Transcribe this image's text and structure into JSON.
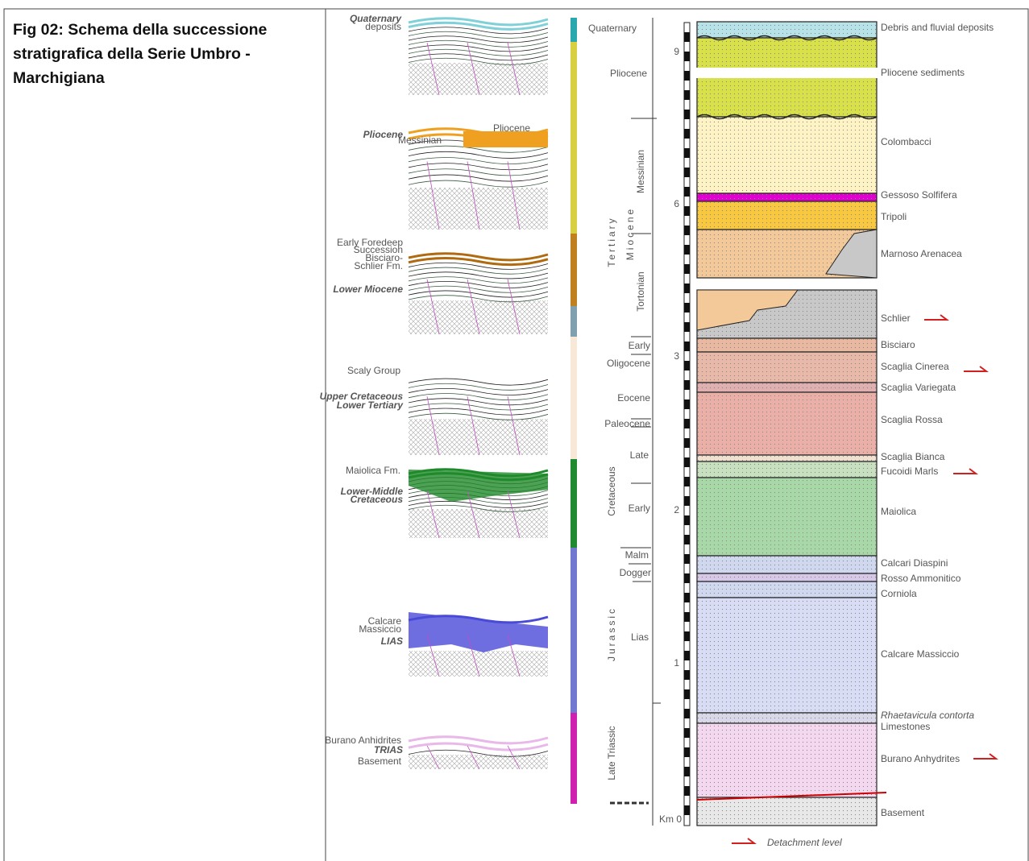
{
  "caption": "Fig 02: Schema della successione stratigrafica della Serie Umbro - Marchigiana",
  "sketches": [
    "Quaternary",
    "deposits",
    "Pliocene",
    "Pliocene",
    "Messinian",
    "Early Foredeep",
    "Succession",
    "Bisciaro-",
    "Schlier Fm.",
    "Lower Miocene",
    "Scaly Group",
    "Upper Cretaceous",
    "Lower Tertiary",
    "Maiolica Fm.",
    "Lower-Middle",
    "Cretaceous",
    "Calcare",
    "Massiccio",
    "LIAS",
    "Burano Anhidrites",
    "TRIAS",
    "Basement"
  ],
  "chronology": [
    "Quaternary",
    "Pliocene",
    "Tertiary",
    "Miocene",
    "Messinian",
    "Tortonian",
    "Early",
    "Oligocene",
    "Eocene",
    "Paleocene",
    "Cretaceous",
    "Late",
    "Early",
    "Malm",
    "Dogger",
    "Jurassic",
    "Lias",
    "Late Triassic"
  ],
  "depth_scale": [
    "9",
    "6",
    "3",
    "2",
    "1",
    "Km 0"
  ],
  "units": [
    "Debris and fluvial deposits",
    "Pliocene sediments",
    "Colombacci",
    "Gessoso Solfifera",
    "Tripoli",
    "Marnoso Arenacea",
    "Schlier",
    "Bisciaro",
    "Scaglia Cinerea",
    "Scaglia Variegata",
    "Scaglia Rossa",
    "Scaglia Bianca",
    "Fucoidi Marls",
    "Maiolica",
    "Calcari Diaspini",
    "Rosso Ammonitico",
    "Corniola",
    "Calcare Massiccio",
    "Rhaetavicula contorta",
    "Limestones",
    "Burano Anhydrites",
    "Basement"
  ],
  "legend": "Detachment level"
}
